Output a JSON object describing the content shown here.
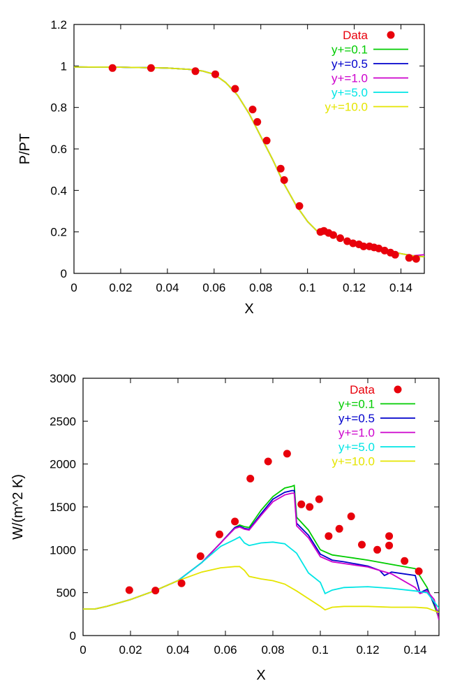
{
  "chart_data": [
    {
      "type": "line",
      "title": "",
      "xlabel": "X",
      "ylabel": "P/PT",
      "xlim": [
        0,
        0.15
      ],
      "ylim": [
        0,
        1.2
      ],
      "xticks": [
        "0",
        "0.02",
        "0.04",
        "0.06",
        "0.08",
        "0.1",
        "0.12",
        "0.14"
      ],
      "xtick_values": [
        0,
        0.02,
        0.04,
        0.06,
        0.08,
        0.1,
        0.12,
        0.14
      ],
      "yticks": [
        "0",
        "0.2",
        "0.4",
        "0.6",
        "0.8",
        "1",
        "1.2"
      ],
      "ytick_values": [
        0,
        0.2,
        0.4,
        0.6,
        0.8,
        1.0,
        1.2
      ],
      "grid": false,
      "legend_position": "top-right",
      "points": {
        "name": "Data",
        "color": "#e8000b",
        "x": [
          0.0165,
          0.033,
          0.052,
          0.0605,
          0.069,
          0.0765,
          0.0785,
          0.0825,
          0.0885,
          0.09,
          0.0965,
          0.1055,
          0.107,
          0.109,
          0.111,
          0.114,
          0.117,
          0.1195,
          0.122,
          0.124,
          0.1265,
          0.1285,
          0.1305,
          0.133,
          0.1355,
          0.1375,
          0.1435,
          0.1465
        ],
        "y": [
          0.99,
          0.99,
          0.975,
          0.96,
          0.89,
          0.79,
          0.73,
          0.64,
          0.505,
          0.45,
          0.325,
          0.2,
          0.205,
          0.195,
          0.185,
          0.17,
          0.155,
          0.145,
          0.14,
          0.13,
          0.13,
          0.125,
          0.12,
          0.11,
          0.1,
          0.09,
          0.075,
          0.07
        ]
      },
      "series": [
        {
          "name": "y+=0.1",
          "color": "#00cc00",
          "x": [
            0,
            0.02,
            0.04,
            0.05,
            0.055,
            0.06,
            0.065,
            0.07,
            0.075,
            0.08,
            0.085,
            0.09,
            0.095,
            0.1,
            0.104,
            0.11,
            0.12,
            0.13,
            0.14,
            0.145,
            0.15
          ],
          "y": [
            0.995,
            0.994,
            0.99,
            0.983,
            0.976,
            0.96,
            0.92,
            0.86,
            0.77,
            0.66,
            0.55,
            0.43,
            0.33,
            0.25,
            0.205,
            0.18,
            0.15,
            0.12,
            0.095,
            0.085,
            0.08
          ]
        },
        {
          "name": "y+=0.5",
          "color": "#0000cc",
          "x": [
            0,
            0.02,
            0.04,
            0.05,
            0.055,
            0.06,
            0.065,
            0.07,
            0.075,
            0.08,
            0.085,
            0.09,
            0.095,
            0.1,
            0.104,
            0.11,
            0.12,
            0.13,
            0.14,
            0.145,
            0.15
          ],
          "y": [
            0.995,
            0.994,
            0.99,
            0.983,
            0.976,
            0.96,
            0.92,
            0.86,
            0.77,
            0.66,
            0.55,
            0.43,
            0.33,
            0.25,
            0.205,
            0.18,
            0.15,
            0.12,
            0.095,
            0.085,
            0.08
          ]
        },
        {
          "name": "y+=1.0",
          "color": "#cc00cc",
          "x": [
            0,
            0.02,
            0.04,
            0.05,
            0.055,
            0.06,
            0.065,
            0.07,
            0.075,
            0.08,
            0.085,
            0.09,
            0.095,
            0.1,
            0.104,
            0.11,
            0.12,
            0.13,
            0.14,
            0.145,
            0.15
          ],
          "y": [
            0.995,
            0.994,
            0.99,
            0.983,
            0.976,
            0.96,
            0.92,
            0.86,
            0.77,
            0.66,
            0.55,
            0.43,
            0.33,
            0.25,
            0.205,
            0.18,
            0.15,
            0.12,
            0.095,
            0.085,
            0.09
          ]
        },
        {
          "name": "y+=5.0",
          "color": "#00e5e5",
          "x": [
            0,
            0.02,
            0.04,
            0.05,
            0.055,
            0.06,
            0.065,
            0.07,
            0.075,
            0.08,
            0.085,
            0.09,
            0.095,
            0.1,
            0.104,
            0.11,
            0.12,
            0.13,
            0.14,
            0.145,
            0.15
          ],
          "y": [
            0.995,
            0.994,
            0.99,
            0.983,
            0.976,
            0.96,
            0.92,
            0.86,
            0.77,
            0.66,
            0.55,
            0.43,
            0.33,
            0.25,
            0.205,
            0.18,
            0.15,
            0.12,
            0.095,
            0.085,
            0.08
          ]
        },
        {
          "name": "y+=10.0",
          "color": "#e5e500",
          "x": [
            0,
            0.02,
            0.04,
            0.05,
            0.055,
            0.06,
            0.065,
            0.07,
            0.075,
            0.08,
            0.085,
            0.09,
            0.095,
            0.1,
            0.104,
            0.11,
            0.12,
            0.13,
            0.14,
            0.145,
            0.15
          ],
          "y": [
            0.995,
            0.994,
            0.99,
            0.983,
            0.976,
            0.96,
            0.92,
            0.86,
            0.77,
            0.66,
            0.55,
            0.43,
            0.33,
            0.25,
            0.205,
            0.18,
            0.15,
            0.12,
            0.095,
            0.085,
            0.08
          ]
        }
      ]
    },
    {
      "type": "line",
      "title": "",
      "xlabel": "X",
      "ylabel": "W/(m^2 K)",
      "xlim": [
        0,
        0.15
      ],
      "ylim": [
        0,
        3000
      ],
      "xticks": [
        "0",
        "0.02",
        "0.04",
        "0.06",
        "0.08",
        "0.1",
        "0.12",
        "0.14"
      ],
      "xtick_values": [
        0,
        0.02,
        0.04,
        0.06,
        0.08,
        0.1,
        0.12,
        0.14
      ],
      "yticks": [
        "0",
        "500",
        "1000",
        "1500",
        "2000",
        "2500",
        "3000"
      ],
      "ytick_values": [
        0,
        500,
        1000,
        1500,
        2000,
        2500,
        3000
      ],
      "grid": false,
      "legend_position": "top-right",
      "points": {
        "name": "Data",
        "color": "#e8000b",
        "x": [
          0.0195,
          0.0305,
          0.0415,
          0.0495,
          0.0575,
          0.064,
          0.0705,
          0.078,
          0.086,
          0.092,
          0.0955,
          0.0995,
          0.1035,
          0.108,
          0.113,
          0.1175,
          0.124,
          0.129,
          0.129,
          0.1355,
          0.1415
        ],
        "y": [
          530,
          525,
          610,
          925,
          1180,
          1330,
          1830,
          2030,
          2120,
          1530,
          1500,
          1590,
          1160,
          1245,
          1390,
          1060,
          1000,
          1160,
          1050,
          870,
          750
        ]
      },
      "series": [
        {
          "name": "y+=0.1",
          "color": "#00cc00",
          "x": [
            0,
            0.005,
            0.01,
            0.015,
            0.02,
            0.03,
            0.04,
            0.05,
            0.058,
            0.064,
            0.066,
            0.068,
            0.07,
            0.075,
            0.08,
            0.085,
            0.088,
            0.089,
            0.09,
            0.095,
            0.1,
            0.105,
            0.11,
            0.12,
            0.13,
            0.14,
            0.145,
            0.148,
            0.15
          ],
          "y": [
            310,
            310,
            340,
            380,
            420,
            520,
            640,
            850,
            1080,
            1260,
            1290,
            1270,
            1260,
            1460,
            1620,
            1720,
            1740,
            1750,
            1380,
            1230,
            1000,
            940,
            920,
            880,
            830,
            780,
            560,
            350,
            200
          ]
        },
        {
          "name": "y+=0.5",
          "color": "#0000cc",
          "x": [
            0,
            0.005,
            0.01,
            0.015,
            0.02,
            0.03,
            0.04,
            0.05,
            0.058,
            0.064,
            0.066,
            0.068,
            0.07,
            0.075,
            0.08,
            0.085,
            0.088,
            0.089,
            0.09,
            0.095,
            0.1,
            0.105,
            0.11,
            0.12,
            0.125,
            0.127,
            0.13,
            0.14,
            0.142,
            0.145,
            0.15
          ],
          "y": [
            310,
            310,
            340,
            380,
            420,
            520,
            640,
            850,
            1080,
            1260,
            1275,
            1250,
            1240,
            1420,
            1590,
            1670,
            1690,
            1690,
            1310,
            1170,
            950,
            880,
            860,
            810,
            760,
            700,
            740,
            700,
            500,
            540,
            250
          ]
        },
        {
          "name": "y+=1.0",
          "color": "#cc00cc",
          "x": [
            0,
            0.005,
            0.01,
            0.015,
            0.02,
            0.03,
            0.04,
            0.05,
            0.058,
            0.064,
            0.066,
            0.068,
            0.07,
            0.075,
            0.08,
            0.085,
            0.088,
            0.089,
            0.09,
            0.095,
            0.1,
            0.105,
            0.11,
            0.12,
            0.13,
            0.14,
            0.142,
            0.145,
            0.148,
            0.15
          ],
          "y": [
            310,
            310,
            340,
            380,
            420,
            520,
            640,
            850,
            1080,
            1250,
            1265,
            1240,
            1230,
            1400,
            1560,
            1640,
            1660,
            1660,
            1280,
            1140,
            920,
            860,
            840,
            800,
            720,
            560,
            490,
            520,
            420,
            180
          ]
        },
        {
          "name": "y+=5.0",
          "color": "#00e5e5",
          "x": [
            0,
            0.005,
            0.01,
            0.015,
            0.02,
            0.03,
            0.04,
            0.05,
            0.058,
            0.064,
            0.066,
            0.068,
            0.07,
            0.075,
            0.08,
            0.085,
            0.09,
            0.095,
            0.1,
            0.102,
            0.105,
            0.11,
            0.12,
            0.13,
            0.14,
            0.145,
            0.15
          ],
          "y": [
            310,
            310,
            340,
            380,
            420,
            520,
            640,
            850,
            1040,
            1120,
            1150,
            1080,
            1050,
            1080,
            1090,
            1070,
            960,
            730,
            620,
            490,
            530,
            560,
            570,
            550,
            520,
            500,
            320
          ]
        },
        {
          "name": "y+=10.0",
          "color": "#e5e500",
          "x": [
            0,
            0.005,
            0.01,
            0.015,
            0.02,
            0.03,
            0.04,
            0.05,
            0.058,
            0.064,
            0.066,
            0.068,
            0.07,
            0.075,
            0.08,
            0.085,
            0.09,
            0.095,
            0.1,
            0.102,
            0.105,
            0.11,
            0.12,
            0.13,
            0.14,
            0.145,
            0.15
          ],
          "y": [
            310,
            310,
            340,
            380,
            420,
            520,
            640,
            740,
            790,
            805,
            805,
            760,
            690,
            660,
            640,
            600,
            520,
            430,
            340,
            300,
            330,
            340,
            340,
            330,
            330,
            320,
            270
          ]
        }
      ]
    }
  ]
}
